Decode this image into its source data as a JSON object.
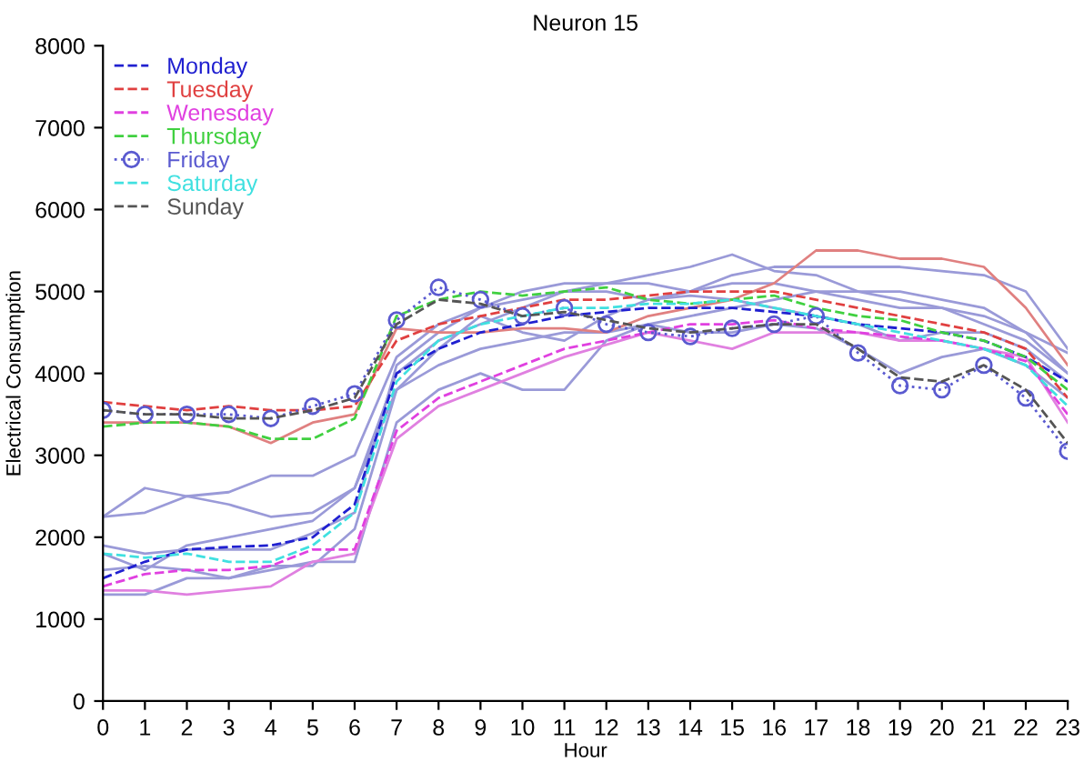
{
  "chart_data": {
    "type": "line",
    "title": "Neuron 15",
    "xlabel": "Hour",
    "ylabel": "Electrical Consumption",
    "x": [
      0,
      1,
      2,
      3,
      4,
      5,
      6,
      7,
      8,
      9,
      10,
      11,
      12,
      13,
      14,
      15,
      16,
      17,
      18,
      19,
      20,
      21,
      22,
      23
    ],
    "xlim": [
      0,
      23
    ],
    "xticks": [
      0,
      1,
      2,
      3,
      4,
      5,
      6,
      7,
      8,
      9,
      10,
      11,
      12,
      13,
      14,
      15,
      16,
      17,
      18,
      19,
      20,
      21,
      22,
      23
    ],
    "ylim": [
      0,
      8000
    ],
    "yticks": [
      0,
      1000,
      2000,
      3000,
      4000,
      5000,
      6000,
      7000,
      8000
    ],
    "grid": false,
    "legend": "top left",
    "series": [
      {
        "color": "#9a9ad8",
        "line_style": "solid",
        "values": [
          2250,
          2600,
          2500,
          2550,
          2750,
          2750,
          3000,
          4200,
          4600,
          4800,
          5000,
          5100,
          5100,
          5200,
          5300,
          5450,
          5250,
          5200,
          5000,
          4900,
          4800,
          4700,
          4500,
          4250
        ]
      },
      {
        "color": "#9a9ad8",
        "line_style": "solid",
        "values": [
          2250,
          2300,
          2500,
          2400,
          2250,
          2300,
          2600,
          3800,
          4300,
          4700,
          4500,
          4400,
          4700,
          4900,
          5000,
          5200,
          5300,
          5300,
          5300,
          5300,
          5250,
          5200,
          5000,
          4300
        ]
      },
      {
        "color": "#9a9ad8",
        "line_style": "solid",
        "values": [
          1800,
          1600,
          1900,
          2000,
          2100,
          2200,
          2600,
          4000,
          4400,
          4600,
          4800,
          5000,
          5000,
          4900,
          4950,
          4900,
          4800,
          4700,
          4600,
          4400,
          4500,
          4500,
          4300,
          3900
        ]
      },
      {
        "color": "#9a9ad8",
        "line_style": "solid",
        "values": [
          1300,
          1300,
          1500,
          1500,
          1600,
          1700,
          1700,
          3400,
          3800,
          4000,
          3800,
          3800,
          4400,
          4600,
          4700,
          4800,
          4900,
          5000,
          5000,
          5000,
          4900,
          4800,
          4500,
          4000
        ]
      },
      {
        "color": "#9a9ad8",
        "line_style": "solid",
        "values": [
          1600,
          1650,
          1600,
          1500,
          1650,
          1650,
          2100,
          3800,
          4100,
          4300,
          4400,
          4500,
          4500,
          4600,
          4500,
          4500,
          4600,
          4550,
          4300,
          4000,
          4200,
          4300,
          4100,
          3700
        ]
      },
      {
        "color": "#9a9ad8",
        "line_style": "solid",
        "values": [
          1900,
          1800,
          1850,
          1850,
          1850,
          2050,
          2300,
          4100,
          4500,
          4800,
          4900,
          5000,
          5100,
          5100,
          5000,
          5100,
          5100,
          5000,
          4900,
          4800,
          4800,
          4600,
          4400,
          4000
        ]
      },
      {
        "color": "#e080e0",
        "line_style": "solid",
        "values": [
          1350,
          1350,
          1300,
          1350,
          1400,
          1700,
          1800,
          3200,
          3600,
          3800,
          4000,
          4200,
          4350,
          4500,
          4400,
          4300,
          4500,
          4500,
          4500,
          4400,
          4400,
          4300,
          4200,
          3400
        ]
      },
      {
        "color": "#e08080",
        "line_style": "solid",
        "values": [
          3400,
          3400,
          3400,
          3350,
          3150,
          3400,
          3500,
          4550,
          4500,
          4500,
          4550,
          4550,
          4500,
          4700,
          4800,
          4900,
          5100,
          5500,
          5500,
          5400,
          5400,
          5300,
          4800,
          4100
        ]
      },
      {
        "name": "Monday",
        "color": "#2020d0",
        "line_style": "dashed",
        "marker": "none",
        "values": [
          1500,
          1700,
          1850,
          1880,
          1900,
          2000,
          2400,
          4000,
          4300,
          4500,
          4600,
          4700,
          4750,
          4800,
          4800,
          4800,
          4750,
          4700,
          4600,
          4550,
          4500,
          4400,
          4200,
          3900
        ]
      },
      {
        "name": "Tuesday",
        "color": "#e04040",
        "line_style": "dashed",
        "marker": "none",
        "values": [
          3650,
          3600,
          3550,
          3600,
          3550,
          3550,
          3600,
          4400,
          4600,
          4700,
          4800,
          4900,
          4900,
          4950,
          5000,
          5000,
          5000,
          4900,
          4800,
          4700,
          4600,
          4500,
          4300,
          3700
        ]
      },
      {
        "name": "Wenesday",
        "color": "#e040e0",
        "line_style": "dashed",
        "marker": "none",
        "values": [
          1400,
          1550,
          1600,
          1600,
          1650,
          1850,
          1850,
          3300,
          3700,
          3900,
          4100,
          4300,
          4400,
          4500,
          4600,
          4600,
          4650,
          4550,
          4500,
          4450,
          4400,
          4300,
          4150,
          3500
        ]
      },
      {
        "name": "Thursday",
        "color": "#40d040",
        "line_style": "dashed",
        "marker": "none",
        "values": [
          3350,
          3400,
          3400,
          3350,
          3200,
          3200,
          3450,
          4700,
          4900,
          5000,
          4950,
          5000,
          5050,
          4900,
          4850,
          4900,
          4950,
          4800,
          4700,
          4650,
          4500,
          4400,
          4200,
          3800
        ]
      },
      {
        "name": "Friday",
        "color": "#5a5ad0",
        "line_style": "dotted",
        "marker": "circle",
        "values": [
          3550,
          3500,
          3500,
          3500,
          3450,
          3600,
          3750,
          4650,
          5050,
          4900,
          4700,
          4800,
          4600,
          4500,
          4450,
          4550,
          4600,
          4700,
          4250,
          3850,
          3800,
          4100,
          3700,
          3050
        ]
      },
      {
        "name": "Saturday",
        "color": "#40e0e0",
        "line_style": "dashed",
        "marker": "none",
        "values": [
          1800,
          1750,
          1800,
          1700,
          1700,
          1900,
          2300,
          3900,
          4400,
          4600,
          4700,
          4800,
          4800,
          4850,
          4850,
          4900,
          4800,
          4700,
          4600,
          4500,
          4400,
          4300,
          4100,
          3600
        ]
      },
      {
        "name": "Sunday",
        "color": "#555555",
        "line_style": "dashed",
        "marker": "none",
        "values": [
          3550,
          3500,
          3500,
          3450,
          3450,
          3550,
          3700,
          4600,
          4900,
          4850,
          4700,
          4750,
          4650,
          4550,
          4500,
          4550,
          4600,
          4600,
          4300,
          3950,
          3900,
          4100,
          3800,
          3150
        ]
      }
    ]
  }
}
